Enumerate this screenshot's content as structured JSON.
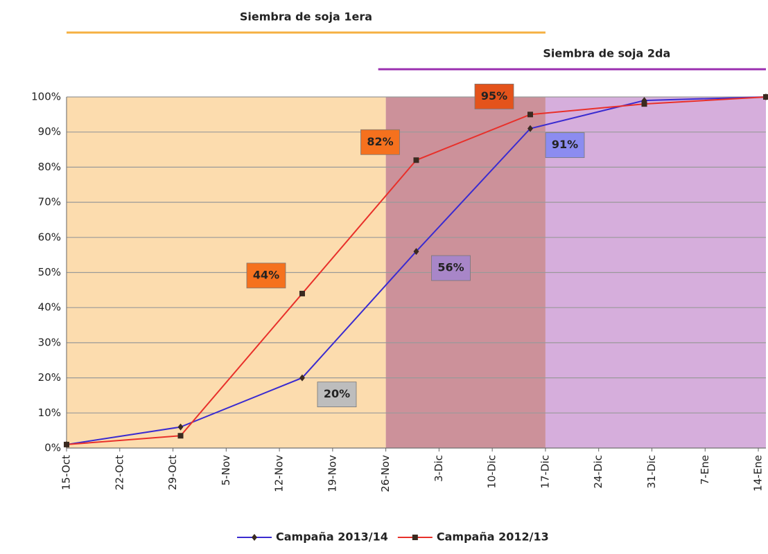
{
  "chart_data": {
    "type": "line",
    "x": [
      0,
      15,
      31,
      46,
      61,
      76,
      92
    ],
    "xlim": [
      0,
      92
    ],
    "xticks": [
      {
        "value": 0,
        "label": "15-Oct"
      },
      {
        "value": 7,
        "label": "22-Oct"
      },
      {
        "value": 14,
        "label": "29-Oct"
      },
      {
        "value": 21,
        "label": "5-Nov"
      },
      {
        "value": 28,
        "label": "12-Nov"
      },
      {
        "value": 35,
        "label": "19-Nov"
      },
      {
        "value": 42,
        "label": "26-Nov"
      },
      {
        "value": 49,
        "label": "3-Dic"
      },
      {
        "value": 56,
        "label": "10-Dic"
      },
      {
        "value": 63,
        "label": "17-Dic"
      },
      {
        "value": 70,
        "label": "24-Dic"
      },
      {
        "value": 77,
        "label": "31-Dic"
      },
      {
        "value": 84,
        "label": "7-Ene"
      },
      {
        "value": 91,
        "label": "14-Ene"
      }
    ],
    "ylim": [
      0,
      100
    ],
    "yticks": [
      {
        "value": 0,
        "label": "0%"
      },
      {
        "value": 10,
        "label": "10%"
      },
      {
        "value": 20,
        "label": "20%"
      },
      {
        "value": 30,
        "label": "30%"
      },
      {
        "value": 40,
        "label": "40%"
      },
      {
        "value": 50,
        "label": "50%"
      },
      {
        "value": 60,
        "label": "60%"
      },
      {
        "value": 70,
        "label": "70%"
      },
      {
        "value": 80,
        "label": "80%"
      },
      {
        "value": 90,
        "label": "90%"
      },
      {
        "value": 100,
        "label": "100%"
      }
    ],
    "grid": true,
    "legend": "bottom",
    "series": [
      {
        "name": "Campaña 2013/14",
        "color": "#3a2bd0",
        "marker": "diamond",
        "values": [
          1,
          6,
          20,
          56,
          91,
          99,
          100
        ],
        "value_labels": [
          null,
          null,
          "20%",
          "56%",
          "91%",
          null,
          null
        ],
        "value_label_colors": [
          null,
          null,
          "#bdbdbd",
          "#a886c8",
          "#8c8cf0",
          null,
          null
        ]
      },
      {
        "name": "Campaña 2012/13",
        "color": "#e8302a",
        "marker": "square",
        "values": [
          1,
          3.5,
          44,
          82,
          95,
          98,
          100
        ],
        "value_labels": [
          null,
          null,
          "44%",
          "82%",
          "95%",
          null,
          null
        ],
        "value_label_colors": [
          null,
          null,
          "#f5711e",
          "#f5711e",
          "#e4531b",
          null,
          null
        ]
      }
    ],
    "periods": [
      {
        "label": "Siembra de soja 1era",
        "start": 0,
        "end": 63,
        "color": "#f5b041"
      },
      {
        "label": "Siembra de soja 2da",
        "start": 41,
        "end": 92,
        "color": "#9b30b0"
      }
    ],
    "shading": [
      {
        "start": 0,
        "end": 42,
        "color": "#fcdcae"
      },
      {
        "start": 42,
        "end": 63,
        "color": "#cc919a"
      },
      {
        "start": 63,
        "end": 92,
        "color": "#d6aedc"
      }
    ]
  }
}
